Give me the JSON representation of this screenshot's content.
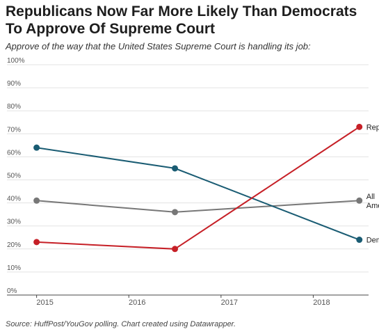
{
  "chart_data": {
    "type": "line",
    "title": "Republicans Now Far More Likely Than Democrats To Approve Of Supreme Court",
    "subtitle": "Approve of the way that the United States Supreme Court is handling its job:",
    "source": "Source: HuffPost/YouGov polling. Chart created using Datawrapper.",
    "y_ticks": [
      "0%",
      "10%",
      "20%",
      "30%",
      "40%",
      "50%",
      "60%",
      "70%",
      "80%",
      "90%",
      "100%"
    ],
    "ylim": [
      0,
      100
    ],
    "x_ticks": [
      "2015",
      "2016",
      "2017",
      "2018"
    ],
    "x": [
      "2015",
      "2016.5",
      "2018.5"
    ],
    "series": [
      {
        "name": "Republicans",
        "label_lines": [
          "Republicans"
        ],
        "color": "#c62027",
        "values": [
          23,
          20,
          73
        ]
      },
      {
        "name": "All Americans",
        "label_lines": [
          "All",
          "Americans"
        ],
        "color": "#777777",
        "values": [
          41,
          36,
          41
        ]
      },
      {
        "name": "Democrats",
        "label_lines": [
          "Democrats"
        ],
        "color": "#1a5c73",
        "values": [
          64,
          55,
          24
        ]
      }
    ]
  }
}
